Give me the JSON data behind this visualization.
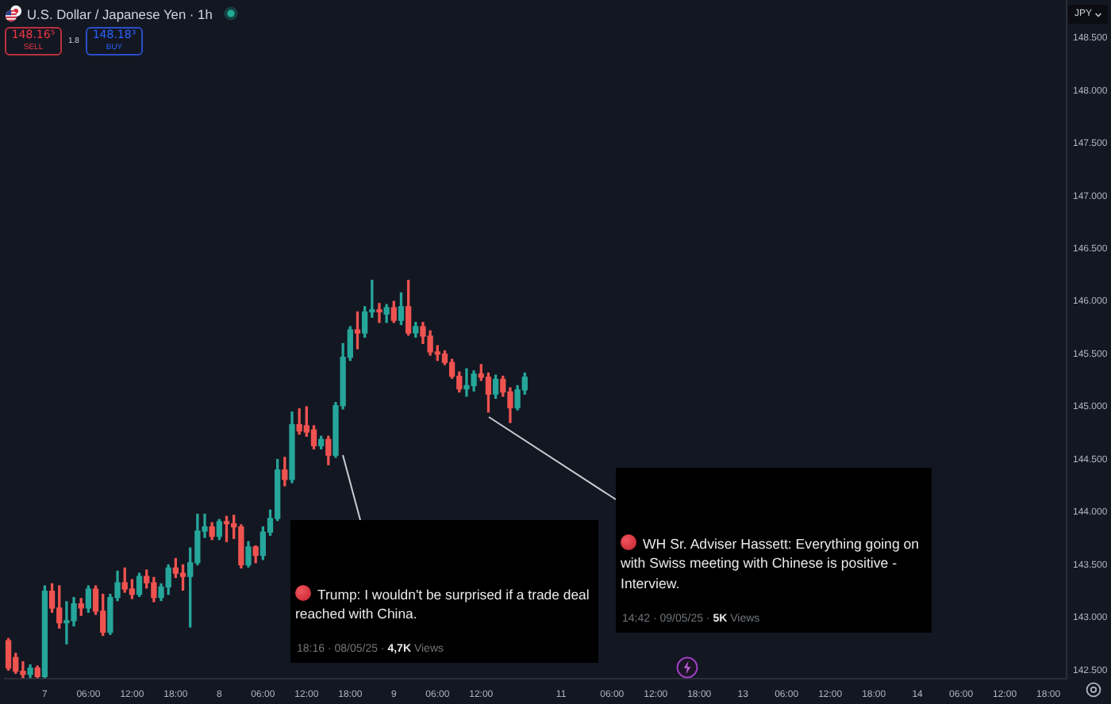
{
  "chart_data": {
    "type": "candlestick",
    "title": "U.S. Dollar / Japanese Yen · 1h",
    "ylabel": "JPY",
    "annotations": [
      "148.16⁵",
      "SELL",
      "1.8",
      "148.18³",
      "BUY",
      "Trump: I wouldn't be surprised if a trade deal reached with China.",
      "18:16 · 08/05/25 · 4,7K Views",
      "WH Sr. Adviser Hassett: Everything going on with Swiss meeting with Chinese is positive - Interview.",
      "14:42 · 09/05/25 · 5K Views"
    ],
    "categories": [
      null,
      null,
      null,
      null,
      null,
      "7",
      null,
      null,
      null,
      null,
      null,
      "06:00",
      null,
      null,
      null,
      null,
      null,
      "12:00",
      null,
      null,
      null,
      null,
      null,
      "18:00",
      null,
      null,
      null,
      null,
      null,
      "8",
      null,
      null,
      null,
      null,
      null,
      "06:00",
      null,
      null,
      null,
      null,
      null,
      "12:00",
      null,
      null,
      null,
      null,
      null,
      "18:00",
      null,
      null,
      null,
      null,
      null,
      "9",
      null,
      null,
      null,
      null,
      null,
      "06:00",
      null,
      null,
      null,
      null,
      null,
      "12:00",
      null,
      null,
      null,
      null,
      null,
      null,
      null,
      null,
      null,
      null,
      "11",
      null,
      null,
      null,
      null,
      null,
      null,
      "06:00",
      null,
      null,
      null,
      null,
      null,
      "12:00",
      null,
      null,
      null,
      null,
      null,
      "18:00",
      null,
      null,
      null,
      null,
      null,
      "13",
      null,
      null,
      null,
      null,
      null,
      "06:00",
      null,
      null,
      null,
      null,
      null,
      "12:00",
      null,
      null,
      null,
      null,
      null,
      "18:00",
      null,
      null,
      null,
      null,
      null,
      "14",
      null,
      null,
      null,
      null,
      null,
      "06:00",
      null,
      null,
      null,
      null,
      null,
      "12:00",
      null,
      null,
      null,
      null,
      null,
      "18:00",
      null,
      null
    ],
    "ohlc": [
      [
        142.78,
        142.8,
        142.5,
        142.52
      ],
      [
        142.62,
        142.66,
        142.47,
        142.49
      ],
      [
        142.49,
        142.58,
        142.43,
        142.46
      ],
      [
        142.46,
        142.55,
        142.43,
        142.52
      ],
      [
        142.52,
        142.54,
        142.43,
        142.44
      ],
      [
        142.44,
        143.3,
        142.43,
        143.25
      ],
      [
        143.25,
        143.32,
        143.05,
        143.09
      ],
      [
        143.09,
        143.3,
        142.9,
        142.95
      ],
      [
        142.95,
        143.15,
        142.75,
        142.97
      ],
      [
        142.97,
        143.19,
        142.92,
        143.13
      ],
      [
        143.13,
        143.18,
        143.02,
        143.09
      ],
      [
        143.09,
        143.3,
        143.05,
        143.27
      ],
      [
        143.27,
        143.3,
        143.03,
        143.06
      ],
      [
        143.06,
        143.22,
        142.83,
        142.86
      ],
      [
        142.86,
        143.22,
        142.84,
        143.19
      ],
      [
        143.19,
        143.44,
        143.16,
        143.33
      ],
      [
        143.33,
        143.47,
        143.24,
        143.27
      ],
      [
        143.27,
        143.36,
        143.18,
        143.22
      ],
      [
        143.22,
        143.42,
        143.2,
        143.39
      ],
      [
        143.39,
        143.45,
        143.28,
        143.33
      ],
      [
        143.33,
        143.38,
        143.15,
        143.19
      ],
      [
        143.19,
        143.32,
        143.16,
        143.29
      ],
      [
        143.29,
        143.5,
        143.22,
        143.47
      ],
      [
        143.47,
        143.56,
        143.38,
        143.42
      ],
      [
        143.42,
        143.5,
        143.26,
        143.39
      ],
      [
        143.39,
        143.66,
        142.91,
        143.52
      ],
      [
        143.52,
        143.98,
        143.5,
        143.82
      ],
      [
        143.82,
        143.98,
        143.76,
        143.86
      ],
      [
        143.86,
        143.9,
        143.74,
        143.77
      ],
      [
        143.77,
        143.93,
        143.74,
        143.91
      ],
      [
        143.91,
        143.96,
        143.72,
        143.89
      ],
      [
        143.89,
        143.97,
        143.75,
        143.86
      ],
      [
        143.86,
        143.88,
        143.47,
        143.5
      ],
      [
        143.5,
        143.72,
        143.48,
        143.67
      ],
      [
        143.67,
        143.68,
        143.52,
        143.59
      ],
      [
        143.59,
        143.86,
        143.55,
        143.81
      ],
      [
        143.81,
        144.02,
        143.78,
        143.94
      ],
      [
        143.94,
        144.5,
        143.92,
        144.4
      ],
      [
        144.4,
        144.52,
        144.25,
        144.31
      ],
      [
        144.31,
        144.95,
        144.28,
        144.83
      ],
      [
        144.83,
        144.98,
        144.74,
        144.77
      ],
      [
        144.82,
        145.0,
        144.72,
        144.76
      ],
      [
        144.78,
        144.82,
        144.6,
        144.63
      ],
      [
        144.63,
        144.72,
        144.6,
        144.69
      ],
      [
        144.69,
        144.72,
        144.45,
        144.54
      ],
      [
        144.54,
        145.04,
        144.52,
        145.01
      ],
      [
        145.01,
        145.6,
        144.98,
        145.47
      ],
      [
        145.47,
        145.76,
        145.44,
        145.73
      ],
      [
        145.73,
        145.9,
        145.55,
        145.7
      ],
      [
        145.7,
        145.95,
        145.66,
        145.9
      ],
      [
        145.9,
        146.2,
        145.85,
        145.92
      ],
      [
        145.92,
        145.98,
        145.8,
        145.9
      ],
      [
        145.88,
        145.97,
        145.8,
        145.94
      ],
      [
        145.94,
        146.0,
        145.8,
        145.82
      ],
      [
        145.82,
        146.08,
        145.78,
        145.95
      ],
      [
        145.95,
        146.2,
        145.68,
        145.7
      ],
      [
        145.7,
        145.8,
        145.66,
        145.76
      ],
      [
        145.76,
        145.8,
        145.6,
        145.67
      ],
      [
        145.67,
        145.72,
        145.49,
        145.52
      ],
      [
        145.52,
        145.58,
        145.44,
        145.5
      ],
      [
        145.5,
        145.53,
        145.4,
        145.42
      ],
      [
        145.42,
        145.45,
        145.27,
        145.29
      ],
      [
        145.29,
        145.33,
        145.14,
        145.17
      ],
      [
        145.17,
        145.36,
        145.1,
        145.2
      ],
      [
        145.2,
        145.34,
        145.15,
        145.31
      ],
      [
        145.31,
        145.4,
        145.25,
        145.28
      ],
      [
        145.28,
        145.32,
        144.95,
        145.12
      ],
      [
        145.12,
        145.3,
        145.08,
        145.26
      ],
      [
        145.26,
        145.29,
        145.1,
        145.14
      ],
      [
        145.14,
        145.18,
        144.85,
        144.99
      ],
      [
        144.99,
        145.2,
        144.97,
        145.16
      ],
      [
        145.16,
        145.32,
        145.12,
        145.28
      ],
      null,
      null,
      null,
      null,
      null,
      null,
      null,
      null,
      null,
      null,
      null,
      null,
      null,
      null,
      null,
      null,
      null,
      null,
      null,
      null,
      null,
      null,
      null,
      null,
      null,
      null,
      null,
      null,
      null,
      null,
      null,
      null,
      null,
      null,
      null,
      null,
      null,
      null,
      null,
      null,
      null,
      null,
      null,
      null,
      null,
      null,
      null,
      null,
      null,
      null,
      null,
      null,
      null,
      null,
      null,
      null,
      null,
      null,
      null,
      null,
      null,
      null,
      null,
      null,
      null,
      null,
      null,
      null,
      null,
      null,
      null,
      null,
      null,
      null
    ],
    "colors": [
      "#ef5350",
      "#ef5350",
      "#ef5350",
      "#26a69a",
      "#ef5350",
      "#26a69a",
      "#ef5350",
      "#ef5350",
      "#26a69a",
      "#26a69a",
      "#ef5350",
      "#26a69a",
      "#ef5350",
      "#ef5350",
      "#26a69a",
      "#26a69a",
      "#ef5350",
      "#ef5350",
      "#26a69a",
      "#ef5350",
      "#ef5350",
      "#26a69a",
      "#26a69a",
      "#ef5350",
      "#ef5350",
      "#26a69a",
      "#26a69a",
      "#26a69a",
      "#ef5350",
      "#26a69a",
      "#ef5350",
      "#ef5350",
      "#ef5350",
      "#26a69a",
      "#ef5350",
      "#26a69a",
      "#26a69a",
      "#26a69a",
      "#ef5350",
      "#26a69a",
      "#ef5350",
      "#ef5350",
      "#ef5350",
      "#26a69a",
      "#ef5350",
      "#26a69a",
      "#26a69a",
      "#26a69a",
      "#ef5350",
      "#26a69a",
      "#26a69a",
      "#ef5350",
      "#26a69a",
      "#ef5350",
      "#26a69a",
      "#ef5350",
      "#26a69a",
      "#ef5350",
      "#ef5350",
      "#ef5350",
      "#ef5350",
      "#ef5350",
      "#ef5350",
      "#26a69a",
      "#26a69a",
      "#ef5350",
      "#ef5350",
      "#26a69a",
      "#ef5350",
      "#ef5350",
      "#26a69a",
      "#26a69a",
      null,
      null,
      null,
      null,
      null,
      null,
      null,
      null,
      null,
      null,
      null,
      null,
      null,
      null,
      null,
      null,
      null,
      null,
      null,
      null,
      null,
      null,
      null,
      null,
      null,
      null,
      null,
      null,
      null,
      null,
      null,
      null,
      null,
      null,
      null,
      null,
      null,
      null,
      null,
      null,
      null,
      null,
      null,
      null,
      null,
      null,
      null,
      null,
      null,
      null,
      null,
      null,
      null,
      null,
      null,
      null,
      null,
      null,
      null,
      null,
      null,
      null,
      null,
      null,
      null,
      null,
      null,
      null,
      null,
      null,
      null,
      null,
      null,
      null
    ],
    "ylim": [
      142.42,
      148.86
    ],
    "yticks": [
      {
        "value": 142.5,
        "label": "142.500"
      },
      {
        "value": 143,
        "label": "143.000"
      },
      {
        "value": 143.5,
        "label": "143.500"
      },
      {
        "value": 144,
        "label": "144.000"
      },
      {
        "value": 144.5,
        "label": "144.500"
      },
      {
        "value": 145,
        "label": "145.000"
      },
      {
        "value": 145.5,
        "label": "145.500"
      },
      {
        "value": 146,
        "label": "146.000"
      },
      {
        "value": 146.5,
        "label": "146.500"
      },
      {
        "value": 147,
        "label": "147.000"
      },
      {
        "value": 147.5,
        "label": "147.500"
      },
      {
        "value": 148,
        "label": "148.000"
      },
      {
        "value": 148.5,
        "label": "148.500"
      }
    ]
  }
}
